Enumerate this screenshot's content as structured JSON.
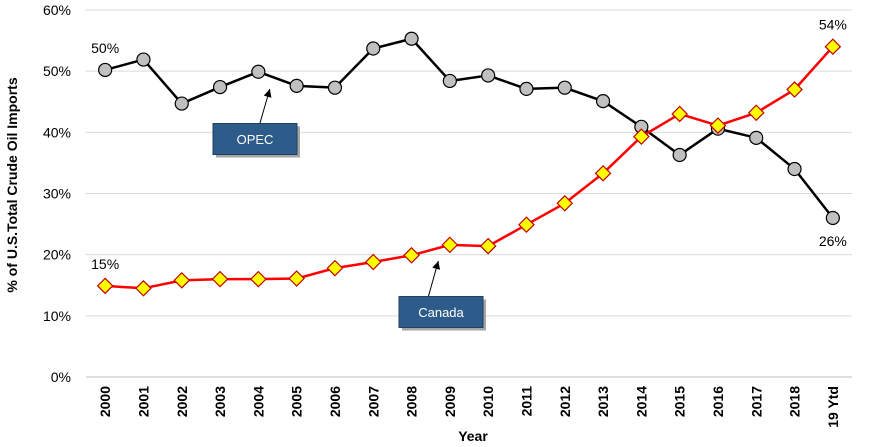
{
  "chart_data": {
    "type": "line",
    "title": "",
    "xlabel": "Year",
    "ylabel": "% of U.S.Total Crude Oil Imports",
    "categories": [
      "2000",
      "2001",
      "2002",
      "2003",
      "2004",
      "2005",
      "2006",
      "2007",
      "2008",
      "2009",
      "2010",
      "2011",
      "2012",
      "2013",
      "2014",
      "2015",
      "2016",
      "2017",
      "2018",
      "19 Ytd"
    ],
    "ylim": [
      0,
      60
    ],
    "yticks": [
      "0%",
      "10%",
      "20%",
      "30%",
      "40%",
      "50%",
      "60%"
    ],
    "grid": "horizontal",
    "legend": "none",
    "series": [
      {
        "name": "OPEC",
        "color": "#000000",
        "marker": "circle",
        "marker_fill": "#c0c0c0",
        "values": [
          50.2,
          51.9,
          44.7,
          47.4,
          49.9,
          47.6,
          47.3,
          53.7,
          55.3,
          48.4,
          49.3,
          47.1,
          47.3,
          45.1,
          40.9,
          36.3,
          40.6,
          39.1,
          34.0,
          26.0
        ]
      },
      {
        "name": "Canada",
        "color": "#ff0000",
        "marker": "diamond",
        "marker_fill": "#ffff00",
        "values": [
          14.9,
          14.5,
          15.8,
          16.0,
          16.0,
          16.1,
          17.8,
          18.8,
          19.9,
          21.6,
          21.4,
          24.9,
          28.4,
          33.3,
          39.3,
          43.0,
          41.1,
          43.2,
          47.0,
          54.0
        ]
      }
    ],
    "annotations": [
      {
        "text": "50%",
        "series": 0,
        "index": 0
      },
      {
        "text": "26%",
        "series": 0,
        "index": 19
      },
      {
        "text": "15%",
        "series": 1,
        "index": 0
      },
      {
        "text": "54%",
        "series": 1,
        "index": 19
      }
    ],
    "callouts": [
      {
        "text": "OPEC",
        "series": 0
      },
      {
        "text": "Canada",
        "series": 1
      }
    ],
    "callout_color": "#2e5c8a"
  }
}
